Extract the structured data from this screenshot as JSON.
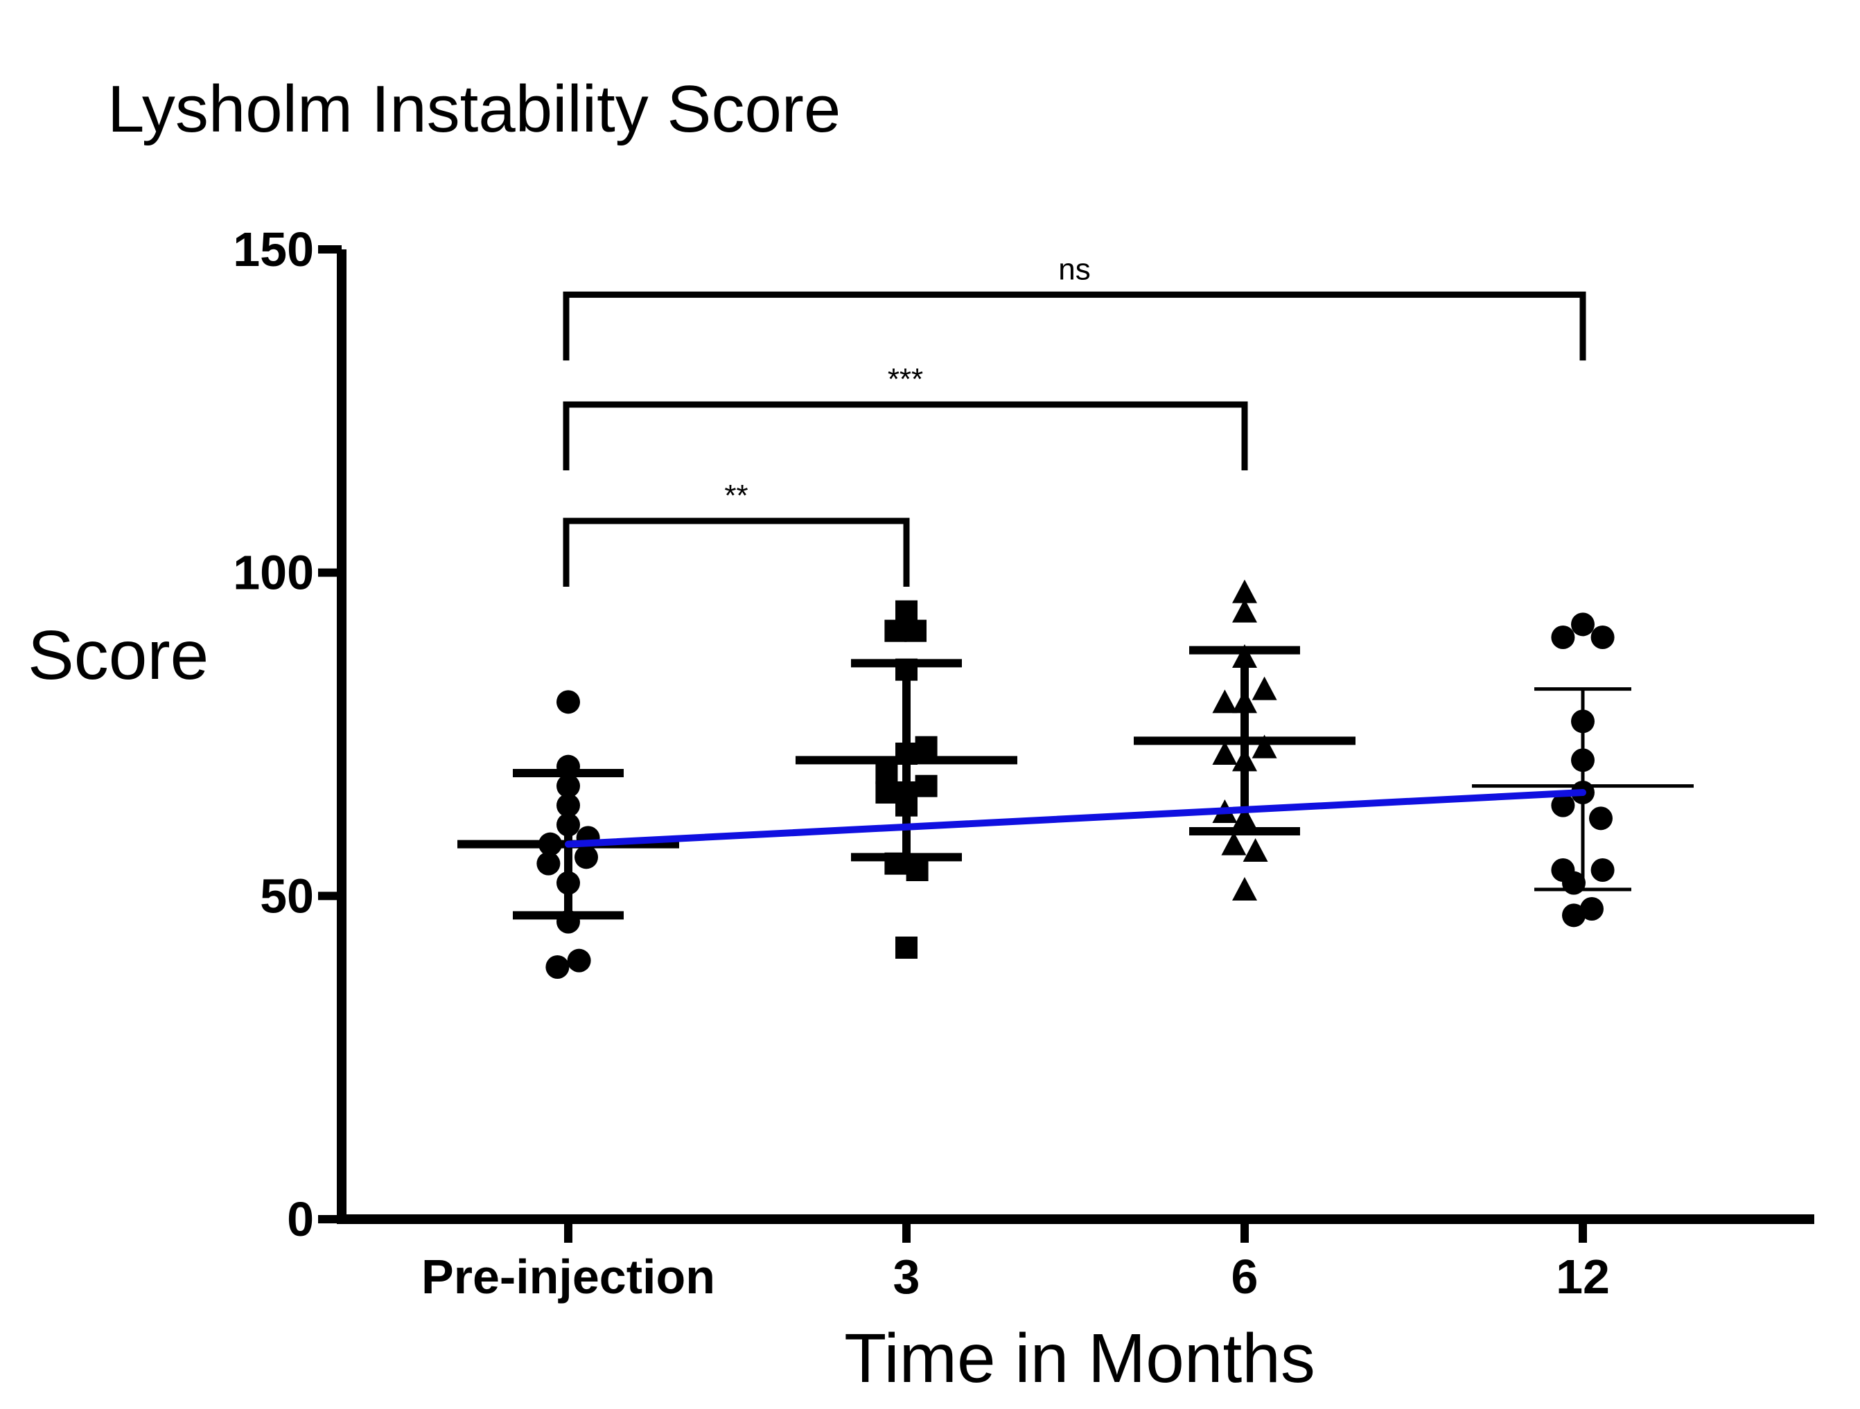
{
  "chart_data": {
    "type": "scatter",
    "title": "Lysholm Instability Score",
    "xlabel": "Time in Months",
    "ylabel": "Score",
    "ylim": [
      0,
      150
    ],
    "yticks": [
      0,
      50,
      100,
      150
    ],
    "categories": [
      "Pre-injection",
      "3",
      "6",
      "12"
    ],
    "series": [
      {
        "name": "Pre-injection",
        "marker": "circle",
        "mean": 58,
        "sd_upper": 69,
        "sd_lower": 47,
        "points": [
          [
            0,
            80
          ],
          [
            0,
            70
          ],
          [
            0,
            67
          ],
          [
            0,
            64
          ],
          [
            0,
            61
          ],
          [
            -0.1,
            58
          ],
          [
            0.11,
            59
          ],
          [
            -0.11,
            55
          ],
          [
            0.1,
            56
          ],
          [
            0,
            52
          ],
          [
            0,
            46
          ],
          [
            -0.06,
            39
          ],
          [
            0.06,
            40
          ]
        ]
      },
      {
        "name": "3",
        "marker": "square",
        "mean": 71,
        "sd_upper": 86,
        "sd_lower": 56,
        "points": [
          [
            0,
            94
          ],
          [
            -0.06,
            91
          ],
          [
            0.05,
            91
          ],
          [
            0,
            85
          ],
          [
            0.11,
            73
          ],
          [
            0,
            72
          ],
          [
            -0.11,
            69
          ],
          [
            0.11,
            67
          ],
          [
            0,
            66
          ],
          [
            -0.11,
            66
          ],
          [
            0,
            64
          ],
          [
            -0.06,
            55
          ],
          [
            0.06,
            54
          ],
          [
            0,
            42
          ]
        ]
      },
      {
        "name": "6",
        "marker": "triangle",
        "mean": 74,
        "sd_upper": 88,
        "sd_lower": 60,
        "points": [
          [
            0,
            97
          ],
          [
            0,
            94
          ],
          [
            0,
            87
          ],
          [
            0.11,
            82
          ],
          [
            -0.11,
            80
          ],
          [
            0,
            80
          ],
          [
            0.11,
            73
          ],
          [
            -0.11,
            72
          ],
          [
            0,
            71
          ],
          [
            -0.11,
            63
          ],
          [
            0,
            62
          ],
          [
            -0.06,
            58
          ],
          [
            0.06,
            57
          ],
          [
            0,
            51
          ]
        ]
      },
      {
        "name": "12",
        "marker": "circle",
        "mean": 67,
        "sd_upper": 82,
        "sd_lower": 51,
        "points": [
          [
            0,
            92
          ],
          [
            -0.11,
            90
          ],
          [
            0.11,
            90
          ],
          [
            0,
            77
          ],
          [
            0,
            71
          ],
          [
            0,
            66
          ],
          [
            -0.11,
            64
          ],
          [
            0.1,
            62
          ],
          [
            -0.11,
            54
          ],
          [
            0.11,
            54
          ],
          [
            -0.05,
            52
          ],
          [
            0.05,
            48
          ],
          [
            -0.05,
            47
          ]
        ]
      }
    ],
    "trend_line": {
      "color": "#1010e0",
      "x": [
        0,
        3
      ],
      "y": [
        58,
        66
      ]
    },
    "comparisons": [
      {
        "from": 0,
        "to": 1,
        "y": 108,
        "label": "**"
      },
      {
        "from": 0,
        "to": 2,
        "y": 126,
        "label": "***"
      },
      {
        "from": 0,
        "to": 3,
        "y": 143,
        "label": "ns"
      }
    ]
  }
}
